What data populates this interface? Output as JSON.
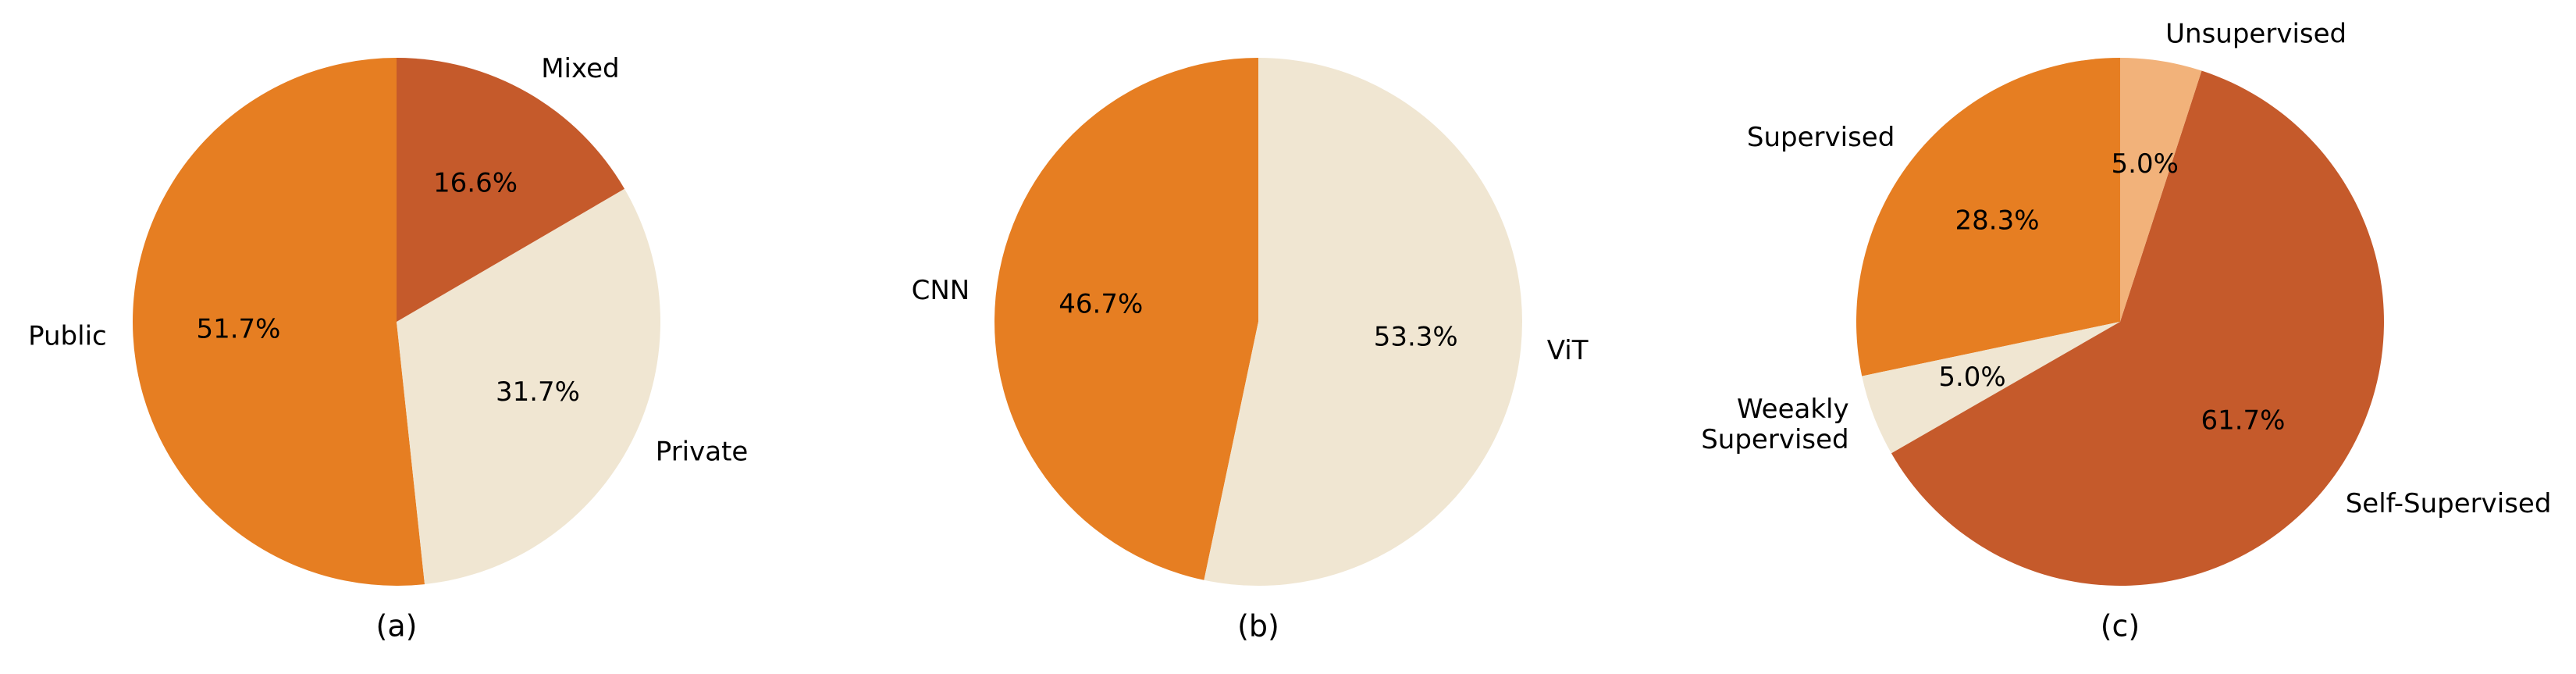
{
  "chart_data": [
    {
      "type": "pie",
      "caption": "(a)",
      "start_angle": 90,
      "counterclockwise": true,
      "categories": [
        "Public",
        "Private",
        "Mixed"
      ],
      "values": [
        51.7,
        31.7,
        16.6
      ],
      "value_labels": [
        "51.7%",
        "31.7%",
        "16.6%"
      ],
      "colors": [
        "#e67e22",
        "#f0e6d2",
        "#c55a2b"
      ]
    },
    {
      "type": "pie",
      "caption": "(b)",
      "start_angle": 90,
      "counterclockwise": true,
      "categories": [
        "CNN",
        "ViT"
      ],
      "values": [
        46.7,
        53.3
      ],
      "value_labels": [
        "46.7%",
        "53.3%"
      ],
      "colors": [
        "#e67e22",
        "#f0e6d2"
      ]
    },
    {
      "type": "pie",
      "caption": "(c)",
      "start_angle": 90,
      "counterclockwise": true,
      "categories": [
        "Supervised",
        "Weeakly\nSupervised",
        "Self-Supervised",
        "Unsupervised"
      ],
      "values": [
        28.3,
        5.0,
        61.7,
        5.0
      ],
      "value_labels": [
        "28.3%",
        "5.0%",
        "61.7%",
        "5.0%"
      ],
      "colors": [
        "#e67e22",
        "#f0e6d2",
        "#c55a2b",
        "#f2b27a"
      ]
    }
  ]
}
